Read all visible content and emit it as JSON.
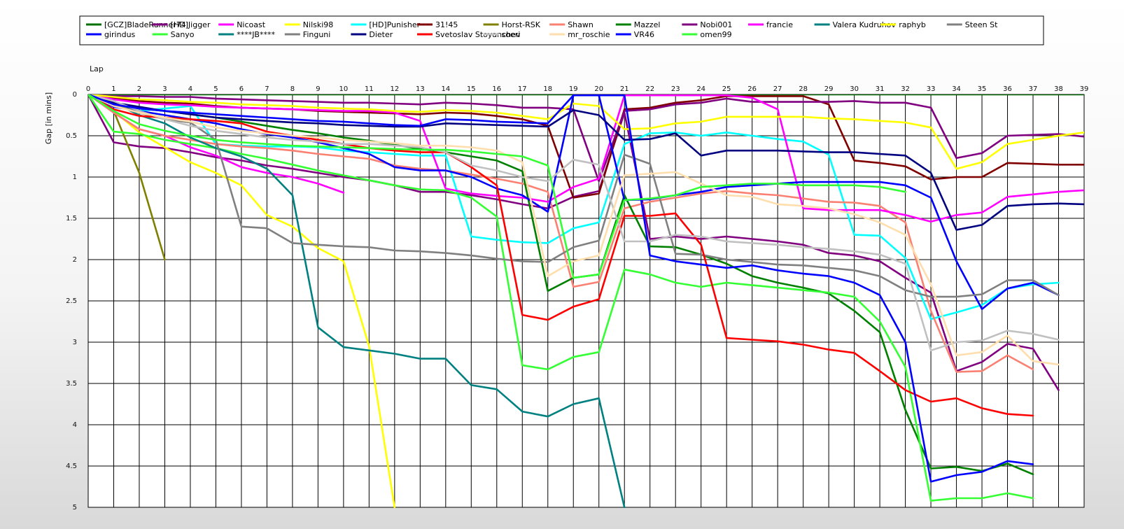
{
  "chart_data": {
    "type": "line",
    "xlabel": "Lap",
    "ylabel": "Gap [in mins]",
    "xlim": [
      0,
      39
    ],
    "ylim": [
      0,
      5
    ],
    "y_inverted": true,
    "grid": true,
    "legend_placement": "top",
    "xticks": [
      0,
      1,
      2,
      3,
      4,
      5,
      6,
      7,
      8,
      9,
      10,
      11,
      12,
      13,
      14,
      15,
      16,
      17,
      18,
      19,
      20,
      21,
      22,
      23,
      24,
      25,
      26,
      27,
      28,
      29,
      30,
      31,
      32,
      33,
      34,
      35,
      36,
      37,
      38,
      39
    ],
    "xtick_labels": [
      "0",
      "1",
      "2",
      "3",
      "4",
      "5",
      "6",
      "7",
      "8",
      "9",
      "10",
      "11",
      "12",
      "13",
      "14",
      "15",
      "16",
      "17",
      "18",
      "19",
      "20",
      "21",
      "22",
      "23",
      "24",
      "25",
      "26",
      "27",
      "28",
      "29",
      "30",
      "31",
      "32",
      "33",
      "34",
      "35",
      "36",
      "37",
      "38",
      "39"
    ],
    "yticks": [
      0,
      0.5,
      1,
      1.5,
      2,
      2.5,
      3,
      3.5,
      4,
      4.5,
      5
    ],
    "ytick_labels": [
      "0",
      "0.5",
      "1",
      "1.5",
      "2",
      "2.5",
      "3",
      "3.5",
      "4",
      "4.5",
      "5"
    ],
    "series": [
      {
        "name": "[GCZ]BladeRunner74",
        "color": "#007000",
        "values": [
          0,
          0,
          0,
          0,
          0,
          0,
          0,
          0,
          0,
          0,
          0,
          0,
          0,
          0,
          0,
          0,
          0,
          0,
          0,
          0,
          0,
          0,
          0,
          0,
          0,
          0,
          0,
          0,
          0,
          0,
          0,
          0,
          0,
          0,
          0,
          0,
          0,
          0,
          0,
          0
        ]
      },
      {
        "name": "[HD]Jigger",
        "color": "#800080",
        "values": [
          0,
          0.58,
          0.63,
          0.65,
          0.7,
          0.76,
          0.8,
          0.86,
          0.9,
          0.95,
          1.0,
          1.04,
          1.1,
          1.18,
          1.18,
          1.22,
          1.27,
          1.33,
          1.38,
          1.24,
          1.17,
          0.22,
          1.75,
          1.72,
          1.75,
          1.72,
          1.75,
          1.78,
          1.82,
          1.92,
          1.95,
          2.02,
          2.22,
          2.4,
          3.35,
          3.24,
          3.02,
          3.08,
          3.58
        ]
      },
      {
        "name": "Nicoast",
        "color": "#ff00ff",
        "values": [
          0,
          0.22,
          0.42,
          0.5,
          0.64,
          0.74,
          0.88,
          0.95,
          1.0,
          1.08,
          1.19
        ]
      },
      {
        "name": "Nilski98",
        "color": "#ffff00",
        "values": [
          0,
          0.2,
          0.46,
          0.64,
          0.82,
          0.95,
          1.1,
          1.46,
          1.6,
          1.86,
          2.02,
          3.05,
          5.0
        ]
      },
      {
        "name": "[HD]Punisher",
        "color": "#00ffff",
        "values": [
          0,
          0.15,
          0.2,
          0.17,
          0.14,
          0.6,
          0.62,
          0.63,
          0.63,
          0.64,
          0.68,
          0.7,
          0.72,
          0.74,
          0.74,
          1.72,
          1.76,
          1.79,
          1.8,
          1.62,
          1.55,
          0.6,
          0.47,
          0.46,
          0.5,
          0.46,
          0.5,
          0.54,
          0.57,
          0.73,
          1.7,
          1.71,
          1.98,
          2.72,
          2.64,
          2.55,
          2.35,
          2.3,
          2.28
        ]
      },
      {
        "name": "31!45",
        "color": "#800000",
        "values": [
          0,
          0.04,
          0.08,
          0.1,
          0.11,
          0.14,
          0.16,
          0.17,
          0.18,
          0.2,
          0.21,
          0.22,
          0.23,
          0.24,
          0.22,
          0.23,
          0.26,
          0.3,
          0.38,
          1.25,
          1.2,
          0.18,
          0.16,
          0.1,
          0.07,
          0.02,
          0.02,
          0.02,
          0.02,
          0.12,
          0.8,
          0.83,
          0.87,
          1.03,
          1.0,
          1.0,
          0.83,
          0.84,
          0.85,
          0.85
        ]
      },
      {
        "name": "Horst-RSK",
        "color": "#808000",
        "values": [
          0,
          0.2,
          0.95,
          2.0
        ]
      },
      {
        "name": "Shawn",
        "color": "#fa8072",
        "values": [
          0,
          0.22,
          0.42,
          0.5,
          0.55,
          0.6,
          0.63,
          0.65,
          0.68,
          0.72,
          0.75,
          0.78,
          0.86,
          0.9,
          0.92,
          0.97,
          1.02,
          1.08,
          1.18,
          2.33,
          2.27,
          1.38,
          1.3,
          1.25,
          1.2,
          1.17,
          1.2,
          1.22,
          1.26,
          1.3,
          1.31,
          1.35,
          1.55,
          2.62,
          3.36,
          3.35,
          3.16,
          3.33
        ]
      },
      {
        "name": "Mazzel",
        "color": "#008000",
        "values": [
          0,
          0.14,
          0.17,
          0.2,
          0.24,
          0.28,
          0.33,
          0.38,
          0.43,
          0.47,
          0.52,
          0.56,
          0.61,
          0.66,
          0.7,
          0.75,
          0.8,
          0.93,
          2.38,
          2.22,
          2.18,
          1.22,
          1.84,
          1.85,
          1.94,
          2.05,
          2.2,
          2.28,
          2.34,
          2.41,
          2.62,
          2.88,
          3.82,
          4.53,
          4.51,
          4.56,
          4.47,
          4.6
        ]
      },
      {
        "name": "Nobi001",
        "color": "#800080",
        "values": [
          0,
          0.02,
          0.02,
          0.03,
          0.03,
          0.05,
          0.06,
          0.07,
          0.08,
          0.09,
          0.1,
          0.1,
          0.11,
          0.12,
          0.1,
          0.11,
          0.13,
          0.16,
          0.16,
          0.18,
          1.05,
          0.2,
          0.18,
          0.12,
          0.1,
          0.05,
          0.09,
          0.09,
          0.09,
          0.09,
          0.08,
          0.1,
          0.1,
          0.16,
          0.77,
          0.71,
          0.5,
          0.49,
          0.48,
          0.51
        ]
      },
      {
        "name": "francie",
        "color": "#ff00ff",
        "values": [
          0,
          0.06,
          0.1,
          0.12,
          0.13,
          0.15,
          0.16,
          0.17,
          0.18,
          0.19,
          0.2,
          0.2,
          0.22,
          0.32,
          1.14,
          1.2,
          1.23,
          1.25,
          1.3,
          1.12,
          1.02,
          0.01,
          0.01,
          0.01,
          0.01,
          0.01,
          0.04,
          0.18,
          1.38,
          1.4,
          1.4,
          1.4,
          1.46,
          1.54,
          1.46,
          1.43,
          1.24,
          1.21,
          1.18,
          1.16
        ]
      },
      {
        "name": "Valera Kudruhov",
        "color": "#008080",
        "values": []
      },
      {
        "name": "raphyb",
        "color": "#ffff00",
        "values": [
          0,
          0.03,
          0.06,
          0.07,
          0.09,
          0.1,
          0.12,
          0.13,
          0.14,
          0.16,
          0.17,
          0.18,
          0.2,
          0.21,
          0.19,
          0.2,
          0.22,
          0.26,
          0.3,
          0.11,
          0.14,
          0.42,
          0.41,
          0.35,
          0.33,
          0.27,
          0.27,
          0.27,
          0.27,
          0.29,
          0.3,
          0.32,
          0.34,
          0.4,
          0.9,
          0.82,
          0.6,
          0.55,
          0.5,
          0.46
        ]
      },
      {
        "name": "Steen St",
        "color": "#808080",
        "values": []
      },
      {
        "name": "girindus",
        "color": "#0000ff",
        "values": [
          0,
          0.15,
          0.2,
          0.25,
          0.3,
          0.35,
          0.42,
          0.48,
          0.52,
          0.58,
          0.65,
          0.72,
          0.88,
          0.92,
          0.92,
          1.0,
          1.14,
          1.22,
          1.42,
          0.01,
          0.01,
          1.28,
          1.27,
          1.22,
          1.18,
          1.12,
          1.1,
          1.08,
          1.06,
          1.06,
          1.06,
          1.06,
          1.1,
          1.25,
          2.02,
          2.6,
          2.35,
          2.28,
          2.43
        ]
      },
      {
        "name": "Sanyo",
        "color": "#33ff33",
        "values": [
          0,
          0.45,
          0.48,
          0.55,
          0.6,
          0.65,
          0.72,
          0.78,
          0.85,
          0.92,
          0.98,
          1.04,
          1.1,
          1.15,
          1.16,
          1.25,
          1.48,
          3.28,
          3.33,
          3.18,
          3.12,
          2.12,
          2.18,
          2.28,
          2.33,
          2.28,
          2.31,
          2.34,
          2.37,
          2.4,
          2.45,
          2.75,
          3.3,
          4.92,
          4.89,
          4.89,
          4.83,
          4.89
        ]
      },
      {
        "name": "****JB****",
        "color": "#008080",
        "values": [
          0,
          0.1,
          0.25,
          0.35,
          0.52,
          0.65,
          0.75,
          0.9,
          1.22,
          2.82,
          3.06,
          3.1,
          3.14,
          3.2,
          3.2,
          3.52,
          3.57,
          3.84,
          3.9,
          3.75,
          3.68,
          5.0
        ]
      },
      {
        "name": "Finguni",
        "color": "#808080",
        "values": [
          0,
          0.12,
          0.22,
          0.3,
          0.34,
          0.55,
          1.6,
          1.62,
          1.8,
          1.82,
          1.84,
          1.85,
          1.89,
          1.9,
          1.92,
          1.95,
          1.99,
          2.02,
          2.03,
          1.85,
          1.77,
          0.73,
          0.84,
          1.93,
          1.94,
          2.0,
          2.03,
          2.06,
          2.07,
          2.1,
          2.13,
          2.2,
          2.37,
          2.45,
          2.45,
          2.42,
          2.25,
          2.25,
          2.43
        ]
      },
      {
        "name": "Dieter",
        "color": "#000080",
        "values": [
          0,
          0.1,
          0.15,
          0.2,
          0.24,
          0.28,
          0.3,
          0.32,
          0.34,
          0.35,
          0.37,
          0.38,
          0.39,
          0.39,
          0.35,
          0.36,
          0.37,
          0.38,
          0.39,
          0.19,
          0.25,
          0.55,
          0.54,
          0.47,
          0.74,
          0.68,
          0.68,
          0.68,
          0.69,
          0.7,
          0.7,
          0.72,
          0.74,
          0.95,
          1.64,
          1.58,
          1.35,
          1.33,
          1.32,
          1.33
        ]
      },
      {
        "name": "Svetoslav Stoyanchev",
        "color": "#ff0000",
        "values": [
          0,
          0.18,
          0.26,
          0.28,
          0.3,
          0.32,
          0.35,
          0.45,
          0.5,
          0.55,
          0.6,
          0.65,
          0.68,
          0.7,
          0.7,
          0.88,
          1.1,
          2.67,
          2.73,
          2.57,
          2.48,
          1.47,
          1.47,
          1.44,
          1.82,
          2.95,
          2.97,
          2.99,
          3.03,
          3.09,
          3.13,
          3.35,
          3.58,
          3.72,
          3.68,
          3.8,
          3.87,
          3.89
        ]
      },
      {
        "name": "soeri",
        "color": "#c0c0c0",
        "values": [
          0,
          0.08,
          0.2,
          0.3,
          0.38,
          0.44,
          0.48,
          0.52,
          0.55,
          0.57,
          0.6,
          0.6,
          0.62,
          0.64,
          0.7,
          0.86,
          0.92,
          1.0,
          1.05,
          0.79,
          0.85,
          1.78,
          1.78,
          1.7,
          1.72,
          1.78,
          1.8,
          1.82,
          1.85,
          1.87,
          1.9,
          1.94,
          2.05,
          3.1,
          3.0,
          2.98,
          2.86,
          2.9,
          2.97
        ]
      },
      {
        "name": "mr_roschie",
        "color": "#ffdead",
        "values": [
          0,
          0.14,
          0.22,
          0.28,
          0.33,
          0.4,
          0.44,
          0.47,
          0.5,
          0.52,
          0.55,
          0.57,
          0.59,
          0.62,
          0.62,
          0.64,
          0.68,
          0.82,
          2.2,
          2.02,
          1.95,
          0.98,
          0.96,
          0.94,
          1.08,
          1.22,
          1.24,
          1.33,
          1.35,
          1.38,
          1.45,
          1.55,
          1.7,
          2.3,
          3.16,
          3.12,
          2.92,
          3.23,
          3.27
        ]
      },
      {
        "name": "VR46",
        "color": "#0000ff",
        "values": [
          0,
          0.12,
          0.17,
          0.2,
          0.22,
          0.24,
          0.26,
          0.28,
          0.3,
          0.32,
          0.33,
          0.35,
          0.37,
          0.38,
          0.3,
          0.31,
          0.33,
          0.34,
          0.35,
          0.01,
          0.01,
          0.01,
          1.95,
          2.02,
          2.06,
          2.1,
          2.07,
          2.13,
          2.17,
          2.2,
          2.28,
          2.43,
          3.0,
          4.69,
          4.61,
          4.57,
          4.44,
          4.48
        ]
      },
      {
        "name": "omen99",
        "color": "#33ff33",
        "values": [
          0,
          0.2,
          0.36,
          0.44,
          0.5,
          0.55,
          0.58,
          0.6,
          0.62,
          0.63,
          0.64,
          0.65,
          0.66,
          0.67,
          0.67,
          0.69,
          0.72,
          0.75,
          0.86,
          2.22,
          2.18,
          1.28,
          1.26,
          1.22,
          1.12,
          1.1,
          1.08,
          1.08,
          1.1,
          1.1,
          1.1,
          1.12,
          1.18
        ]
      }
    ]
  }
}
